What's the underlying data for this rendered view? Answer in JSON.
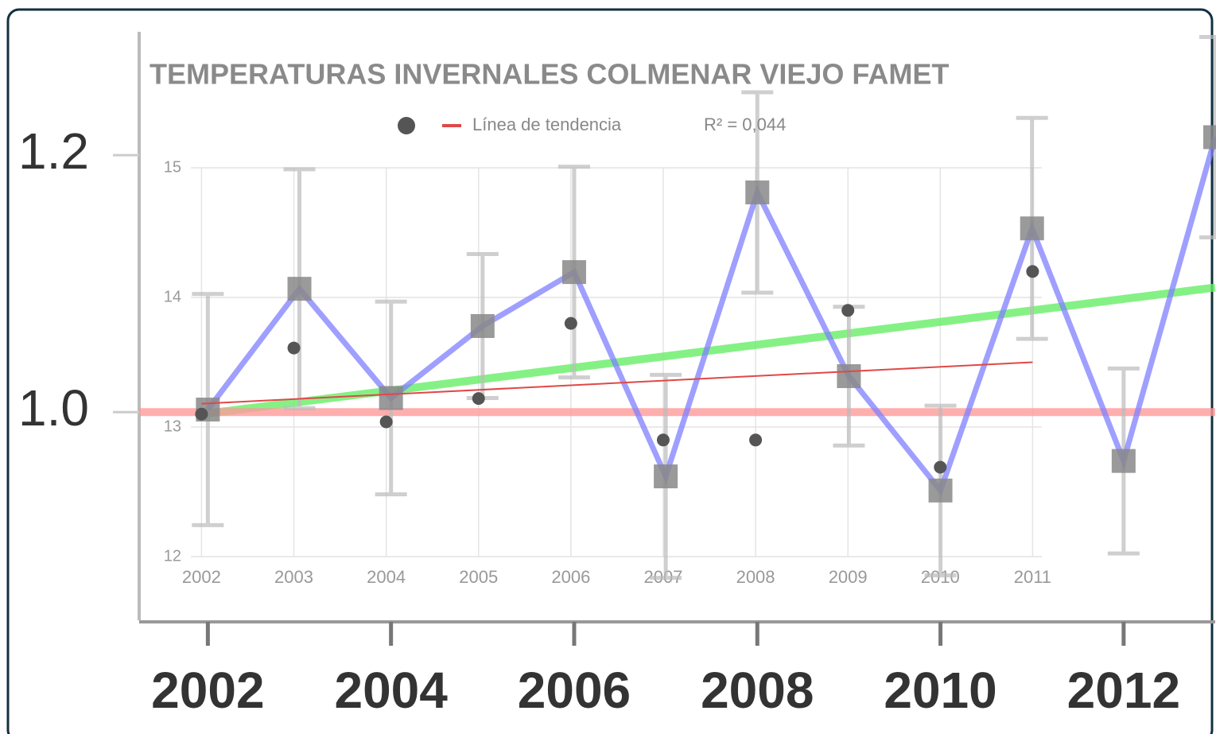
{
  "chart_data": [
    {
      "type": "line",
      "x": [
        2002,
        2003,
        2004,
        2005,
        2006,
        2007,
        2008,
        2009,
        2010,
        2011,
        2012,
        2013
      ],
      "series": [
        {
          "color": "#7f7fff",
          "marker_color": "#888888",
          "values": [
            1.002,
            1.096,
            1.011,
            1.067,
            1.109,
            0.95,
            1.171,
            1.028,
            0.939,
            1.143,
            0.962,
            1.214
          ],
          "errors": [
            0.09,
            0.093,
            0.075,
            0.056,
            0.082,
            0.079,
            0.078,
            0.054,
            0.066,
            0.086,
            0.072,
            0.078
          ]
        }
      ],
      "lines": [
        {
          "color": "#66ee66",
          "x": [
            2002,
            2013
          ],
          "values": [
            0.999,
            1.097
          ]
        },
        {
          "color": "#ff9a9a",
          "x": [
            2001.25,
            2013
          ],
          "values": [
            1,
            1
          ]
        }
      ],
      "xlim": [
        2001.25,
        2013
      ],
      "xticks": [
        2002,
        2004,
        2006,
        2008,
        2010,
        2012
      ],
      "ylim": [
        0.838,
        1.296
      ],
      "yticks": [
        {
          "value": 1,
          "label": "1.0"
        },
        1.2
      ]
    },
    {
      "type": "scatter",
      "title": "TEMPERATURAS INVERNALES COLMENAR VIEJO FAMET",
      "x": [
        2002,
        2003,
        2004,
        2005,
        2006,
        2007,
        2008,
        2009,
        2010,
        2011
      ],
      "series": [
        {
          "color": "#555555",
          "values": [
            13.1,
            13.61,
            13.04,
            13.22,
            13.8,
            12.9,
            12.9,
            13.9,
            12.69,
            14.2
          ]
        }
      ],
      "trend": {
        "name": "Línea de tendencia",
        "color": "#e04848",
        "x": [
          2002,
          2011
        ],
        "values": [
          13.18,
          13.5
        ]
      },
      "annotation": "R² = 0,044",
      "xlim": [
        2001.54,
        2011.1
      ],
      "xticks": [
        2002,
        2003,
        2004,
        2005,
        2006,
        2007,
        2008,
        2009,
        2010,
        2011
      ],
      "ylim": [
        12,
        15
      ],
      "yticks": [
        12,
        13,
        14,
        15
      ],
      "grid": true
    }
  ]
}
